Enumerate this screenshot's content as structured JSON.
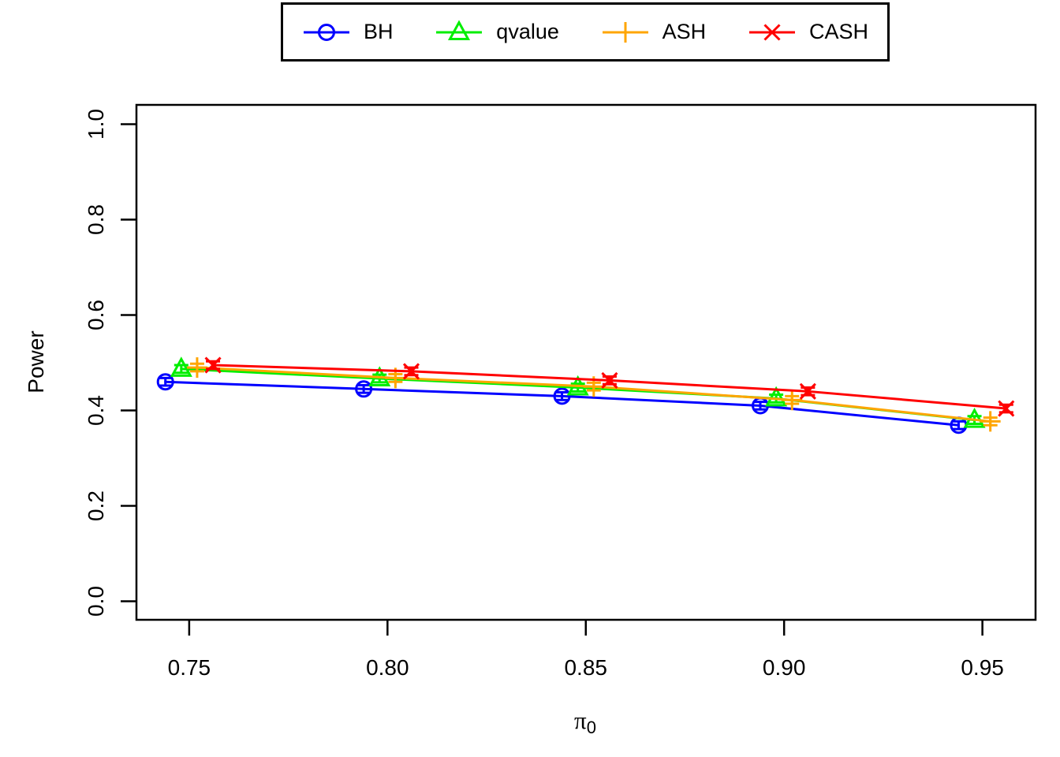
{
  "background": "#ffffff",
  "axis_color": "#000000",
  "chart_data": {
    "type": "line",
    "title": "",
    "xlabel": "π0",
    "xlabel_base": "π",
    "xlabel_sub": "0",
    "ylabel": "Power",
    "grid": false,
    "legend": {
      "position": "top-center-outside",
      "orientation": "horizontal",
      "boxed": true
    },
    "x_axis": {
      "tick_values": [
        0.75,
        0.8,
        0.85,
        0.9,
        0.95
      ],
      "tick_labels": [
        "0.75",
        "0.80",
        "0.85",
        "0.90",
        "0.95"
      ],
      "lim": [
        0.7367,
        0.9634
      ]
    },
    "y_axis": {
      "tick_values": [
        0.0,
        0.2,
        0.4,
        0.6,
        0.8,
        1.0
      ],
      "tick_labels": [
        "0.0",
        "0.2",
        "0.4",
        "0.6",
        "0.8",
        "1.0"
      ],
      "lim": [
        -0.0388,
        1.0405
      ]
    },
    "series": [
      {
        "name": "BH",
        "color": "#0000ff",
        "marker": "circle",
        "x": [
          0.744,
          0.794,
          0.844,
          0.894,
          0.944
        ],
        "y": [
          0.46,
          0.445,
          0.43,
          0.41,
          0.369
        ],
        "se": 0.008
      },
      {
        "name": "qvalue",
        "color": "#00ee00",
        "marker": "triangle",
        "x": [
          0.748,
          0.798,
          0.848,
          0.898,
          0.948
        ],
        "y": [
          0.487,
          0.467,
          0.448,
          0.425,
          0.38
        ],
        "se": 0.008
      },
      {
        "name": "ASH",
        "color": "#ffa500",
        "marker": "plus",
        "x": [
          0.752,
          0.802,
          0.852,
          0.902,
          0.952
        ],
        "y": [
          0.49,
          0.468,
          0.45,
          0.422,
          0.377
        ],
        "se": 0.008
      },
      {
        "name": "CASH",
        "color": "#ff0000",
        "marker": "x",
        "x": [
          0.756,
          0.806,
          0.856,
          0.906,
          0.956
        ],
        "y": [
          0.495,
          0.482,
          0.463,
          0.44,
          0.404
        ],
        "se": 0.008
      }
    ]
  }
}
